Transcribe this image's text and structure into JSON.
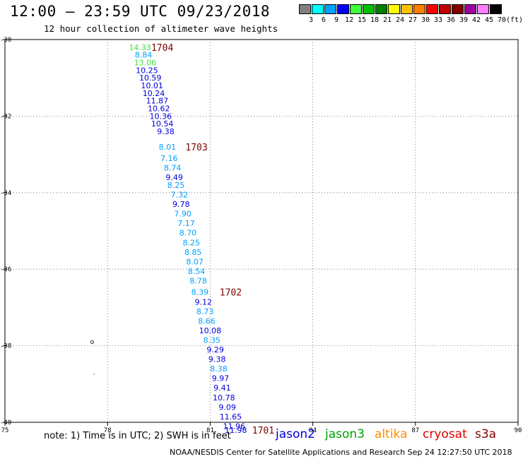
{
  "header": {
    "title": "12:00 – 23:59 UTC 09/23/2018",
    "subtitle": "12 hour collection of altimeter wave heights"
  },
  "legend": {
    "unit": "(ft)",
    "bins": [
      {
        "label": "3",
        "color": "#808080"
      },
      {
        "label": "6",
        "color": "#00ffff"
      },
      {
        "label": "9",
        "color": "#00a0ff"
      },
      {
        "label": "12",
        "color": "#0000ff"
      },
      {
        "label": "15",
        "color": "#40ff40"
      },
      {
        "label": "18",
        "color": "#00c000"
      },
      {
        "label": "21",
        "color": "#008000"
      },
      {
        "label": "24",
        "color": "#ffff00"
      },
      {
        "label": "27",
        "color": "#ffc000"
      },
      {
        "label": "30",
        "color": "#ff8000"
      },
      {
        "label": "33",
        "color": "#ff0000"
      },
      {
        "label": "36",
        "color": "#c00000"
      },
      {
        "label": "39",
        "color": "#800000"
      },
      {
        "label": "42",
        "color": "#a000a0"
      },
      {
        "label": "45",
        "color": "#ff80ff"
      },
      {
        "label": "70",
        "color": "#000000"
      }
    ]
  },
  "footer": {
    "note": "note:  1) Time is in UTC;  2) SWH is in feet",
    "satellites": [
      {
        "name": "jason2",
        "color": "#0000dd"
      },
      {
        "name": "jason3",
        "color": "#00a000"
      },
      {
        "name": "altika",
        "color": "#ff8c00"
      },
      {
        "name": "cryosat",
        "color": "#dd0000"
      },
      {
        "name": "s3a",
        "color": "#800000"
      }
    ],
    "credit": "NOAA/NESDIS Center for Satellite Applications and Research     Sep 24 12:27:50 UTC 2018"
  },
  "chart_data": {
    "type": "scatter",
    "title": "12:00 – 23:59 UTC 09/23/2018",
    "subtitle": "12 hour collection of altimeter wave heights",
    "xlim": [
      75,
      90
    ],
    "ylim": [
      -40,
      -30
    ],
    "x_ticks": [
      "75",
      "78",
      "81",
      "84",
      "87",
      "90"
    ],
    "y_ticks": [
      "-30",
      "-32",
      "-34",
      "-36",
      "-38",
      "-40"
    ],
    "grid": true,
    "units": "ft",
    "colors": {
      "blue": "#0000dd",
      "cyan": "#00a0ff",
      "green": "#40e040",
      "maroon": "#800000"
    },
    "points": [
      {
        "x": 78.95,
        "y": -30.2,
        "v": "14.33",
        "c": "green"
      },
      {
        "x": 79.05,
        "y": -30.4,
        "v": "8.84",
        "c": "cyan"
      },
      {
        "x": 79.1,
        "y": -30.6,
        "v": "13.06",
        "c": "green"
      },
      {
        "x": 79.15,
        "y": -30.8,
        "v": "10.25",
        "c": "blue"
      },
      {
        "x": 79.25,
        "y": -31.0,
        "v": "10.59",
        "c": "blue"
      },
      {
        "x": 79.3,
        "y": -31.2,
        "v": "10.01",
        "c": "blue"
      },
      {
        "x": 79.35,
        "y": -31.4,
        "v": "10.24",
        "c": "blue"
      },
      {
        "x": 79.45,
        "y": -31.6,
        "v": "11.87",
        "c": "blue"
      },
      {
        "x": 79.5,
        "y": -31.8,
        "v": "10.62",
        "c": "blue"
      },
      {
        "x": 79.55,
        "y": -32.0,
        "v": "10.36",
        "c": "blue"
      },
      {
        "x": 79.6,
        "y": -32.2,
        "v": "10.54",
        "c": "blue"
      },
      {
        "x": 79.7,
        "y": -32.4,
        "v": "9.38",
        "c": "blue"
      },
      {
        "x": 79.75,
        "y": -32.8,
        "v": "8.01",
        "c": "cyan"
      },
      {
        "x": 79.8,
        "y": -33.1,
        "v": "7.16",
        "c": "cyan"
      },
      {
        "x": 79.9,
        "y": -33.35,
        "v": "8.74",
        "c": "cyan"
      },
      {
        "x": 79.95,
        "y": -33.6,
        "v": "9.49",
        "c": "blue"
      },
      {
        "x": 80.0,
        "y": -33.8,
        "v": "8.25",
        "c": "cyan"
      },
      {
        "x": 80.1,
        "y": -34.05,
        "v": "7.32",
        "c": "cyan"
      },
      {
        "x": 80.15,
        "y": -34.3,
        "v": "9.78",
        "c": "blue"
      },
      {
        "x": 80.2,
        "y": -34.55,
        "v": "7.90",
        "c": "cyan"
      },
      {
        "x": 80.3,
        "y": -34.8,
        "v": "7.17",
        "c": "cyan"
      },
      {
        "x": 80.35,
        "y": -35.05,
        "v": "8.70",
        "c": "cyan"
      },
      {
        "x": 80.45,
        "y": -35.3,
        "v": "8.25",
        "c": "cyan"
      },
      {
        "x": 80.5,
        "y": -35.55,
        "v": "8.85",
        "c": "cyan"
      },
      {
        "x": 80.55,
        "y": -35.8,
        "v": "8.07",
        "c": "cyan"
      },
      {
        "x": 80.6,
        "y": -36.05,
        "v": "8.54",
        "c": "cyan"
      },
      {
        "x": 80.65,
        "y": -36.3,
        "v": "8.78",
        "c": "cyan"
      },
      {
        "x": 80.7,
        "y": -36.6,
        "v": "8.39",
        "c": "cyan"
      },
      {
        "x": 80.8,
        "y": -36.85,
        "v": "9.12",
        "c": "blue"
      },
      {
        "x": 80.85,
        "y": -37.1,
        "v": "8.73",
        "c": "cyan"
      },
      {
        "x": 80.9,
        "y": -37.35,
        "v": "8.66",
        "c": "cyan"
      },
      {
        "x": 81.0,
        "y": -37.6,
        "v": "10.08",
        "c": "blue"
      },
      {
        "x": 81.05,
        "y": -37.85,
        "v": "8.35",
        "c": "cyan"
      },
      {
        "x": 81.15,
        "y": -38.1,
        "v": "9.29",
        "c": "blue"
      },
      {
        "x": 81.2,
        "y": -38.35,
        "v": "9.38",
        "c": "blue"
      },
      {
        "x": 81.25,
        "y": -38.6,
        "v": "8.38",
        "c": "cyan"
      },
      {
        "x": 81.3,
        "y": -38.85,
        "v": "9.97",
        "c": "blue"
      },
      {
        "x": 81.35,
        "y": -39.1,
        "v": "9.41",
        "c": "blue"
      },
      {
        "x": 81.4,
        "y": -39.35,
        "v": "10.78",
        "c": "blue"
      },
      {
        "x": 81.5,
        "y": -39.6,
        "v": "9.09",
        "c": "blue"
      },
      {
        "x": 81.6,
        "y": -39.85,
        "v": "11.65",
        "c": "blue"
      },
      {
        "x": 81.7,
        "y": -40.1,
        "v": "11.96",
        "c": "blue"
      },
      {
        "x": 81.75,
        "y": -40.2,
        "v": "11.98",
        "c": "blue"
      }
    ],
    "pass_labels": [
      {
        "x": 79.6,
        "y": -30.2,
        "label": "1704"
      },
      {
        "x": 80.6,
        "y": -32.8,
        "label": "1703"
      },
      {
        "x": 81.6,
        "y": -36.6,
        "label": "1702"
      },
      {
        "x": 82.55,
        "y": -40.2,
        "label": "1701"
      }
    ],
    "coast": [
      {
        "x": 77.55,
        "y": -37.9,
        "v": "o"
      },
      {
        "x": 77.6,
        "y": -38.7,
        "v": "."
      }
    ]
  }
}
